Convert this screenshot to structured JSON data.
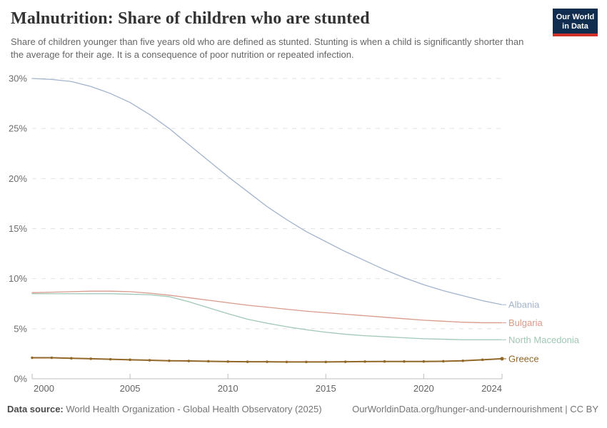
{
  "header": {
    "title": "Malnutrition: Share of children who are stunted",
    "subtitle": "Share of children younger than five years old who are defined as stunted. Stunting is when a child is significantly shorter than the average for their age. It is a consequence of poor nutrition or repeated infection.",
    "logo": {
      "line1": "Our World",
      "line2": "in Data"
    }
  },
  "chart_data": {
    "type": "line",
    "title": "Malnutrition: Share of children who are stunted",
    "xlabel": "",
    "ylabel": "",
    "xlim": [
      2000,
      2024
    ],
    "ylim": [
      0,
      30
    ],
    "grid": true,
    "legend_position": "right-of-line-ends",
    "y_ticks": [
      0,
      5,
      10,
      15,
      20,
      25,
      30
    ],
    "y_tick_suffix": "%",
    "x_label_ticks": [
      2000,
      2005,
      2010,
      2015,
      2020,
      2024
    ],
    "x": [
      2000,
      2001,
      2002,
      2003,
      2004,
      2005,
      2006,
      2007,
      2008,
      2009,
      2010,
      2011,
      2012,
      2013,
      2014,
      2015,
      2016,
      2017,
      2018,
      2019,
      2020,
      2021,
      2022,
      2023,
      2024
    ],
    "series": [
      {
        "name": "Albania",
        "color": "#a2b3cb",
        "markers": false,
        "line_width": 1.3,
        "values": [
          30.0,
          29.9,
          29.7,
          29.2,
          28.5,
          27.6,
          26.4,
          25.0,
          23.4,
          21.8,
          20.2,
          18.7,
          17.2,
          15.9,
          14.7,
          13.7,
          12.7,
          11.8,
          10.9,
          10.1,
          9.4,
          8.8,
          8.3,
          7.8,
          7.4
        ]
      },
      {
        "name": "Bulgaria",
        "color": "#d89a8a",
        "markers": false,
        "line_width": 1.3,
        "values": [
          8.6,
          8.65,
          8.7,
          8.75,
          8.75,
          8.7,
          8.55,
          8.35,
          8.1,
          7.85,
          7.6,
          7.35,
          7.15,
          6.95,
          6.75,
          6.6,
          6.45,
          6.3,
          6.15,
          6.0,
          5.85,
          5.75,
          5.65,
          5.6,
          5.6
        ]
      },
      {
        "name": "North Macedonia",
        "color": "#a0c8b5",
        "markers": false,
        "line_width": 1.3,
        "values": [
          8.5,
          8.5,
          8.5,
          8.5,
          8.5,
          8.45,
          8.4,
          8.2,
          7.7,
          7.1,
          6.5,
          5.95,
          5.55,
          5.2,
          4.9,
          4.65,
          4.45,
          4.3,
          4.2,
          4.1,
          4.0,
          3.95,
          3.9,
          3.9,
          3.9
        ]
      },
      {
        "name": "Greece",
        "color": "#926829",
        "markers": true,
        "line_width": 2,
        "values": [
          2.1,
          2.1,
          2.05,
          2.0,
          1.95,
          1.9,
          1.85,
          1.8,
          1.78,
          1.75,
          1.72,
          1.7,
          1.7,
          1.68,
          1.68,
          1.68,
          1.7,
          1.72,
          1.73,
          1.73,
          1.73,
          1.75,
          1.8,
          1.9,
          2.0
        ]
      }
    ]
  },
  "footer": {
    "source_label": "Data source:",
    "source_text": "World Health Organization - Global Health Observatory (2025)",
    "link_text": "OurWorldinData.org/hunger-and-undernourishment | CC BY"
  },
  "colors": {
    "logo_bg": "#102d50",
    "logo_bar": "#cf3129",
    "gridline": "#e2e2e2",
    "axis": "#bdbdbd"
  }
}
